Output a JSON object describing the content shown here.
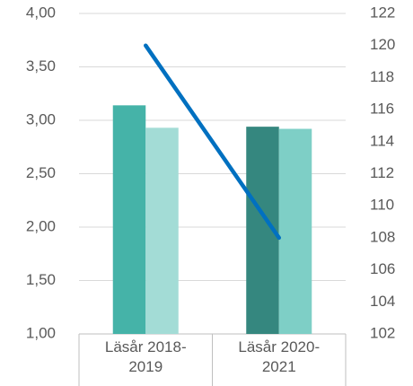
{
  "chart_data": {
    "type": "bar-line",
    "categories": [
      "Läsår 2018-2019",
      "Läsår 2020-2021"
    ],
    "series": [
      {
        "type": "bar",
        "colors": [
          "#45b3a8",
          "#35877f"
        ],
        "values": [
          3.14,
          2.94
        ]
      },
      {
        "type": "bar",
        "colors": [
          "#a3dcd6",
          "#7ecfc6"
        ],
        "values": [
          2.93,
          2.92
        ]
      },
      {
        "type": "line",
        "axis": "y2",
        "color": "#0070c0",
        "values": [
          120,
          108
        ]
      }
    ],
    "ylim": [
      1,
      4
    ],
    "yticks": [
      {
        "value": 1,
        "label": "1,00"
      },
      {
        "value": 1.5,
        "label": "1,50"
      },
      {
        "value": 2,
        "label": "2,00"
      },
      {
        "value": 2.5,
        "label": "2,50"
      },
      {
        "value": 3,
        "label": "3,00"
      },
      {
        "value": 3.5,
        "label": "3,50"
      },
      {
        "value": 4,
        "label": "4,00"
      }
    ],
    "y2lim": [
      102,
      122
    ],
    "y2ticks": [
      102,
      104,
      106,
      108,
      110,
      112,
      114,
      116,
      118,
      120,
      122
    ],
    "grid": true
  }
}
